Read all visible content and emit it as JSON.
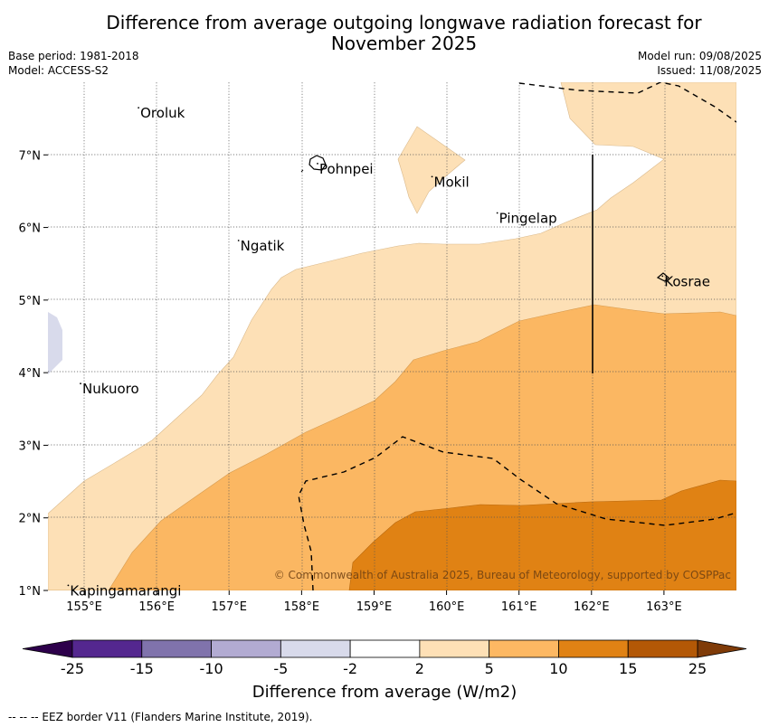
{
  "title_line1": "Difference from average outgoing longwave radiation forecast for",
  "title_line2": "November 2025",
  "base_period": "Base period: 1981-2018",
  "model": "Model: ACCESS-S2",
  "model_run": "Model run: 09/08/2025",
  "issued": "Issued: 11/08/2025",
  "map": {
    "lon_range": [
      154.5,
      164.0
    ],
    "lat_range": [
      1.0,
      8.0
    ],
    "lon_ticks": [
      "155°E",
      "156°E",
      "157°E",
      "158°E",
      "159°E",
      "160°E",
      "161°E",
      "162°E",
      "163°E"
    ],
    "lat_ticks": [
      "1°N",
      "2°N",
      "3°N",
      "4°N",
      "5°N",
      "6°N",
      "7°N"
    ],
    "islands": [
      {
        "name": "Oroluk",
        "lon": 155.75,
        "lat": 7.65
      },
      {
        "name": "Pohnpei",
        "lon": 158.22,
        "lat": 6.88
      },
      {
        "name": "Mokil",
        "lon": 159.8,
        "lat": 6.7
      },
      {
        "name": "Pingelap",
        "lon": 160.7,
        "lat": 6.2
      },
      {
        "name": "Ngatik",
        "lon": 157.13,
        "lat": 5.82
      },
      {
        "name": "Kosrae",
        "lon": 162.98,
        "lat": 5.33
      },
      {
        "name": "Nukuoro",
        "lon": 154.95,
        "lat": 3.85
      },
      {
        "name": "Kapingamarangi",
        "lon": 154.78,
        "lat": 1.07
      }
    ],
    "copyright": "© Commonwealth of Australia 2025, Bureau of Meteorology, supported by COSPPac"
  },
  "colorbar": {
    "ticks": [
      "-25",
      "-15",
      "-10",
      "-5",
      "-2",
      "2",
      "5",
      "10",
      "15",
      "25"
    ],
    "colors": [
      "#54278f",
      "#8073ac",
      "#b2abd2",
      "#d8daeb",
      "#ffffff",
      "#fee0b6",
      "#fdb863",
      "#e08214",
      "#b35806"
    ],
    "extend_low": "#2d004b",
    "extend_high": "#7f3b08",
    "label": "Difference from average (W/m2)"
  },
  "eez_note": "--  --  -- EEZ border V11 (Flanders Marine Institute, 2019)."
}
